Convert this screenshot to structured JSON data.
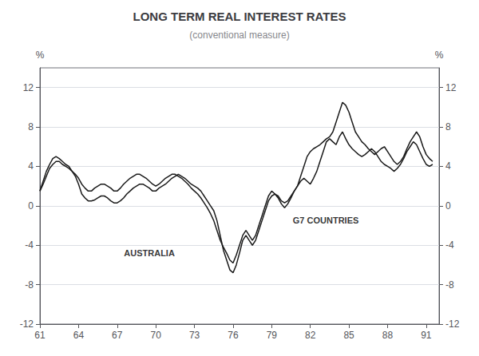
{
  "chart_data": {
    "type": "line",
    "title": "LONG TERM REAL INTEREST RATES",
    "subtitle": "(conventional measure)",
    "ylabel": "%",
    "y2label": "%",
    "xlim": [
      61,
      92
    ],
    "xticks": [
      61,
      64,
      67,
      70,
      73,
      76,
      79,
      82,
      85,
      88,
      91
    ],
    "ylim": [
      -12,
      14
    ],
    "yticks": [
      -12,
      -8,
      -4,
      0,
      4,
      8,
      12
    ],
    "y2lim": [
      -12,
      14
    ],
    "y2ticks": [
      -12,
      -8,
      -4,
      0,
      4,
      8,
      12
    ],
    "x": [
      61.0,
      61.25,
      61.5,
      61.75,
      62.0,
      62.25,
      62.5,
      62.75,
      63.0,
      63.25,
      63.5,
      63.75,
      64.0,
      64.25,
      64.5,
      64.75,
      65.0,
      65.25,
      65.5,
      65.75,
      66.0,
      66.25,
      66.5,
      66.75,
      67.0,
      67.25,
      67.5,
      67.75,
      68.0,
      68.25,
      68.5,
      68.75,
      69.0,
      69.25,
      69.5,
      69.75,
      70.0,
      70.25,
      70.5,
      70.75,
      71.0,
      71.25,
      71.5,
      71.75,
      72.0,
      72.25,
      72.5,
      72.75,
      73.0,
      73.25,
      73.5,
      73.75,
      74.0,
      74.25,
      74.5,
      74.75,
      75.0,
      75.25,
      75.5,
      75.75,
      76.0,
      76.25,
      76.5,
      76.75,
      77.0,
      77.25,
      77.5,
      77.75,
      78.0,
      78.25,
      78.5,
      78.75,
      79.0,
      79.25,
      79.5,
      79.75,
      80.0,
      80.25,
      80.5,
      80.75,
      81.0,
      81.25,
      81.5,
      81.75,
      82.0,
      82.25,
      82.5,
      82.75,
      83.0,
      83.25,
      83.5,
      83.75,
      84.0,
      84.25,
      84.5,
      84.75,
      85.0,
      85.25,
      85.5,
      85.75,
      86.0,
      86.25,
      86.5,
      86.75,
      87.0,
      87.25,
      87.5,
      87.75,
      88.0,
      88.25,
      88.5,
      88.75,
      89.0,
      89.25,
      89.5,
      89.75,
      90.0,
      90.25,
      90.5,
      90.75,
      91.0,
      91.25,
      91.5
    ],
    "series": [
      {
        "color": "#1a1a1a",
        "values": [
          1.5,
          2.5,
          3.5,
          4.2,
          4.8,
          5.0,
          4.8,
          4.5,
          4.2,
          4.0,
          3.5,
          3.0,
          2.2,
          1.2,
          0.8,
          0.5,
          0.5,
          0.6,
          0.8,
          1.0,
          1.0,
          0.8,
          0.5,
          0.3,
          0.3,
          0.5,
          0.8,
          1.2,
          1.5,
          1.8,
          2.0,
          2.2,
          2.2,
          2.0,
          1.8,
          1.5,
          1.5,
          1.8,
          2.0,
          2.2,
          2.5,
          2.8,
          3.0,
          3.2,
          3.0,
          2.8,
          2.5,
          2.2,
          2.0,
          1.8,
          1.5,
          1.0,
          0.5,
          0.0,
          -0.5,
          -1.5,
          -3.0,
          -4.5,
          -5.5,
          -6.5,
          -6.8,
          -6.0,
          -4.8,
          -3.5,
          -3.0,
          -3.5,
          -4.0,
          -3.5,
          -2.5,
          -1.5,
          -0.5,
          0.5,
          1.0,
          1.2,
          1.0,
          0.5,
          0.3,
          0.5,
          1.0,
          1.5,
          2.0,
          3.0,
          4.0,
          5.0,
          5.5,
          5.8,
          6.0,
          6.2,
          6.5,
          6.8,
          7.0,
          7.5,
          8.5,
          9.5,
          10.5,
          10.2,
          9.5,
          8.5,
          7.5,
          7.0,
          6.5,
          6.2,
          5.8,
          5.5,
          5.2,
          5.5,
          5.8,
          6.0,
          5.5,
          5.0,
          4.5,
          4.2,
          4.5,
          5.0,
          5.8,
          6.5,
          7.0,
          7.5,
          7.0,
          6.0,
          5.2,
          4.8,
          4.5
        ]
      },
      {
        "color": "#1a1a1a",
        "values": [
          1.5,
          2.2,
          3.0,
          3.8,
          4.2,
          4.5,
          4.5,
          4.2,
          4.0,
          3.8,
          3.5,
          3.2,
          2.8,
          2.2,
          1.8,
          1.5,
          1.5,
          1.8,
          2.0,
          2.2,
          2.2,
          2.0,
          1.8,
          1.5,
          1.5,
          1.8,
          2.2,
          2.5,
          2.8,
          3.0,
          3.2,
          3.2,
          3.0,
          2.8,
          2.5,
          2.2,
          2.0,
          2.2,
          2.5,
          2.8,
          3.0,
          3.2,
          3.2,
          3.0,
          2.8,
          2.5,
          2.2,
          1.8,
          1.5,
          1.2,
          0.8,
          0.3,
          -0.2,
          -0.8,
          -1.5,
          -2.5,
          -3.5,
          -4.2,
          -4.8,
          -5.5,
          -5.8,
          -5.0,
          -4.0,
          -3.0,
          -2.5,
          -3.0,
          -3.5,
          -3.0,
          -2.0,
          -1.0,
          0.0,
          1.0,
          1.5,
          1.2,
          0.8,
          0.2,
          -0.2,
          0.2,
          0.8,
          1.5,
          2.0,
          2.5,
          2.8,
          2.5,
          2.2,
          2.8,
          3.5,
          4.5,
          5.5,
          6.5,
          6.8,
          6.5,
          6.2,
          7.0,
          7.5,
          6.8,
          6.2,
          5.8,
          5.5,
          5.2,
          5.0,
          5.2,
          5.5,
          5.8,
          5.5,
          5.0,
          4.5,
          4.2,
          4.0,
          3.8,
          3.5,
          3.8,
          4.2,
          4.8,
          5.5,
          6.0,
          6.5,
          6.2,
          5.5,
          4.8,
          4.2,
          4.0,
          4.2
        ]
      }
    ],
    "annotations": [
      {
        "text": "AUSTRALIA",
        "x": 69.5,
        "y": -4.8
      },
      {
        "text": "G7 COUNTRIES",
        "x": 83.2,
        "y": -1.5
      }
    ]
  }
}
